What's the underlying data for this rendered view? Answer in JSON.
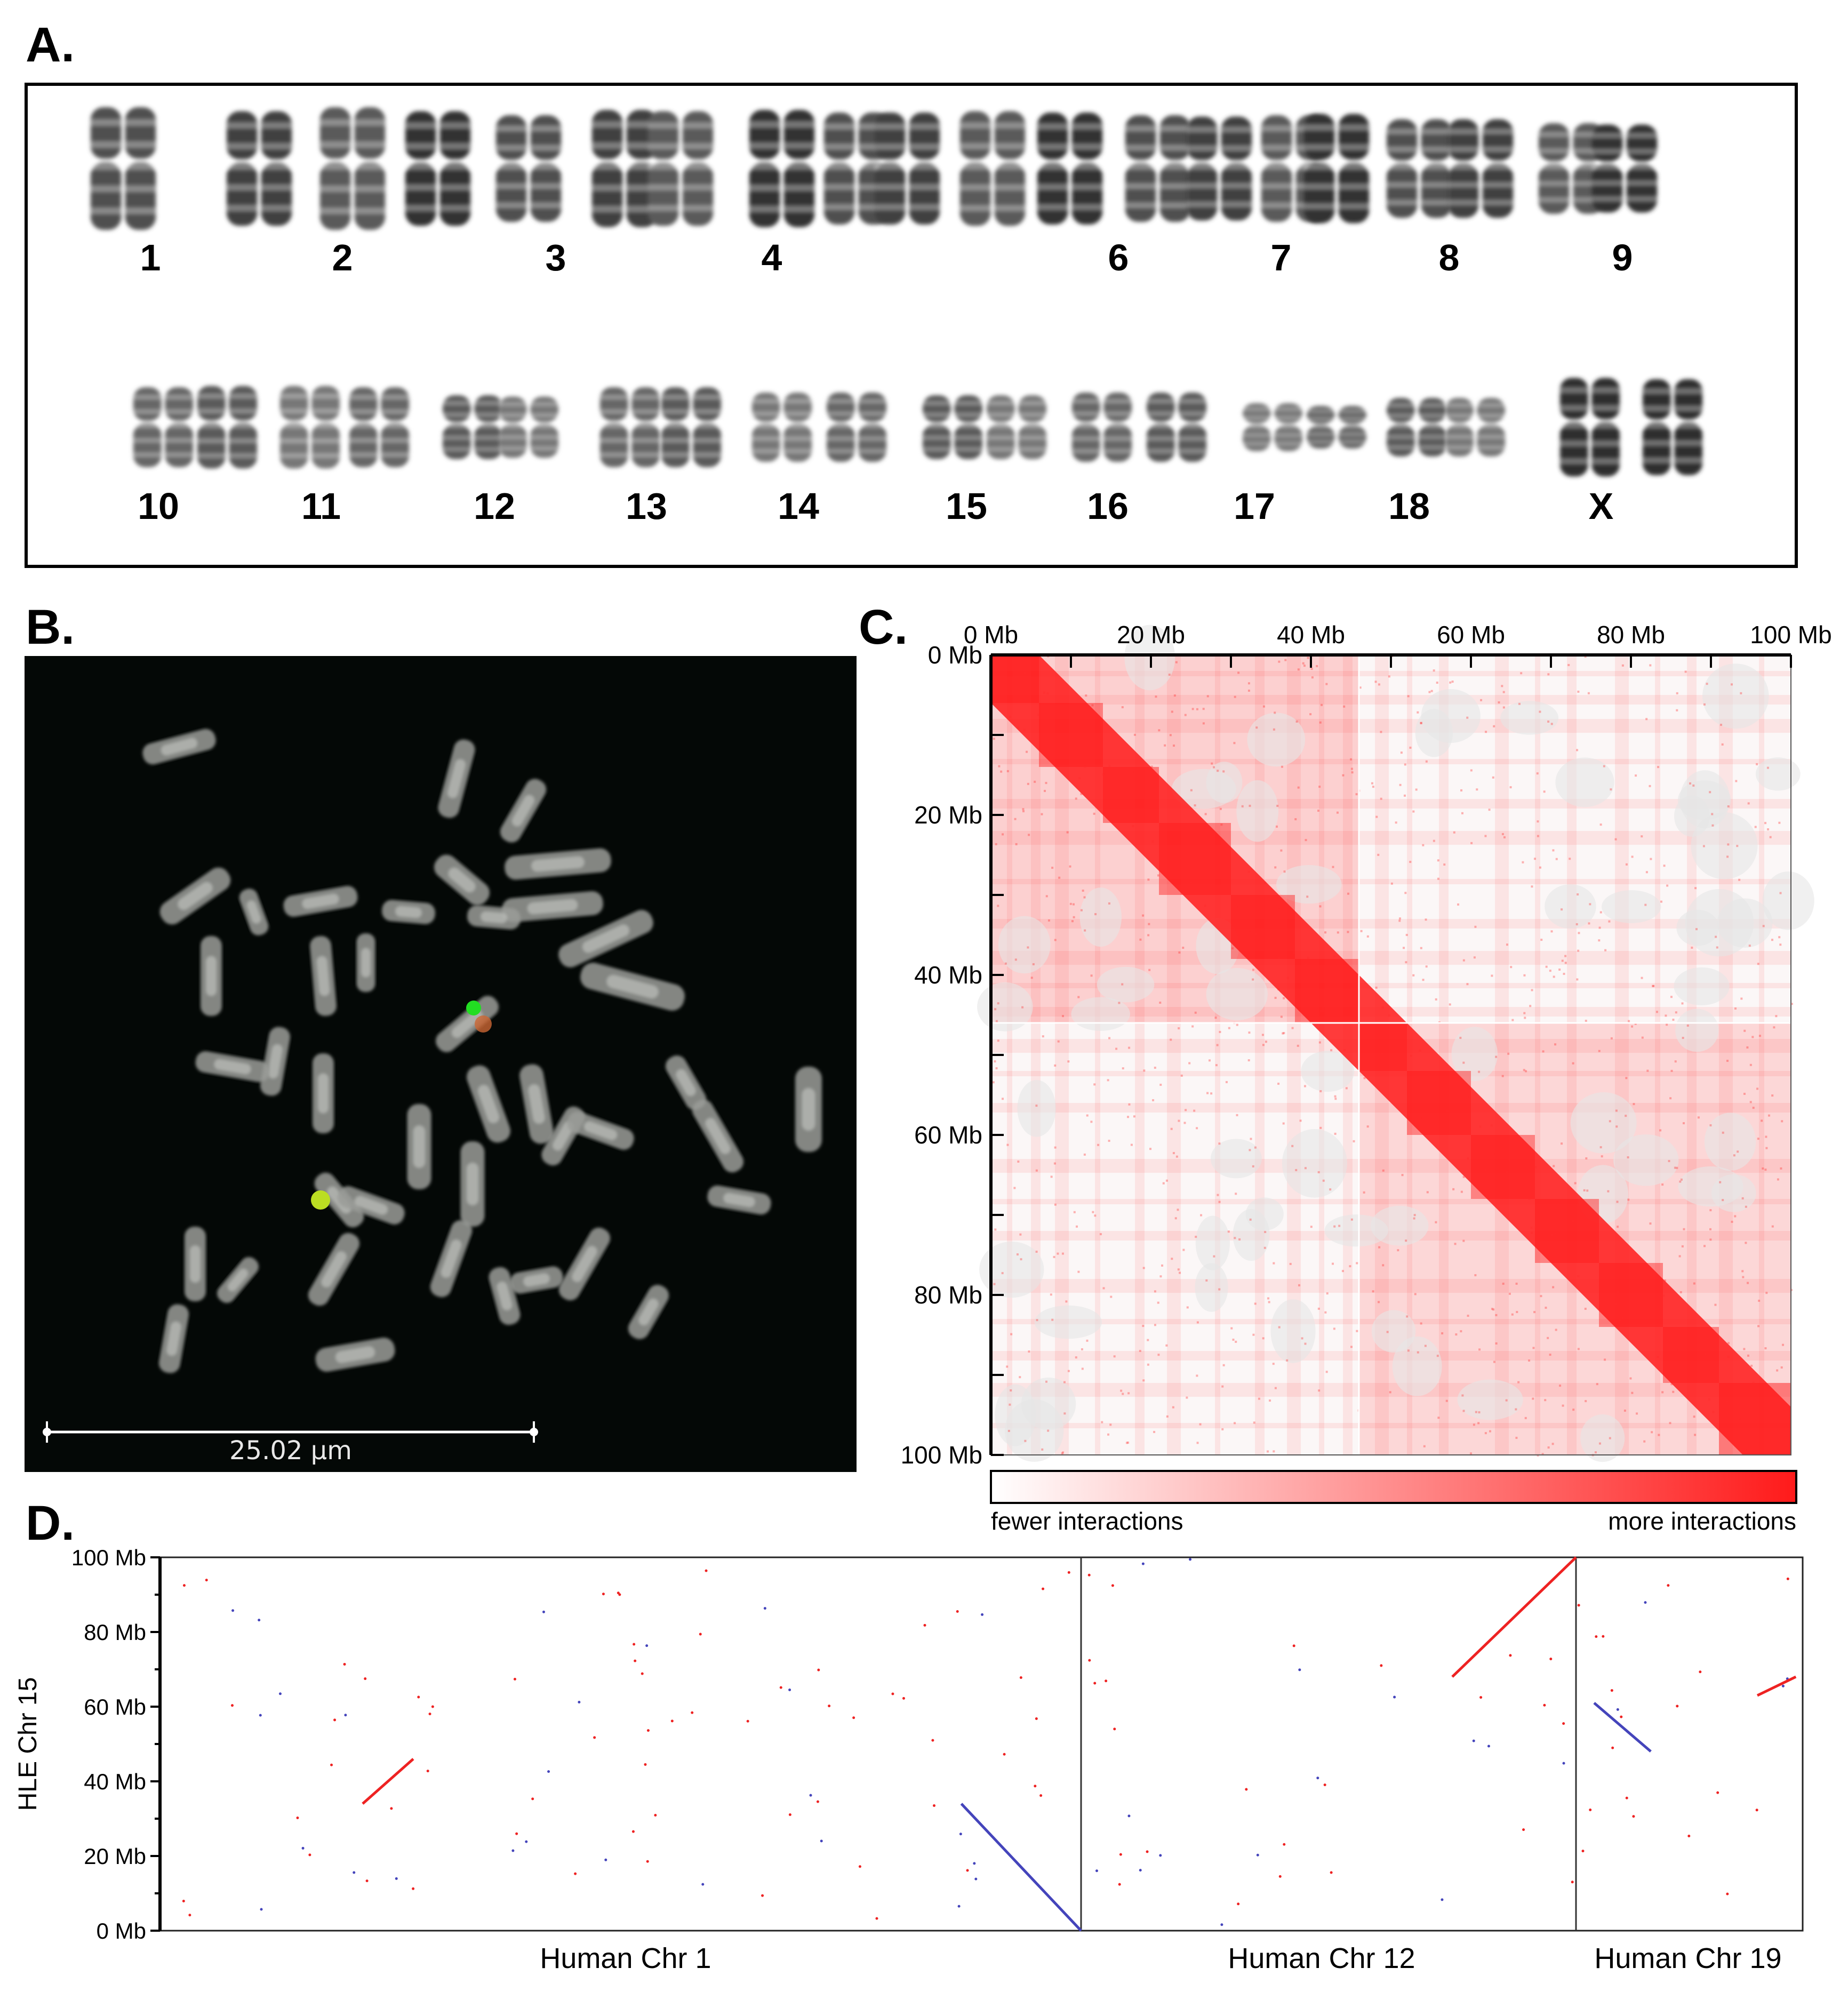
{
  "panels": {
    "a": {
      "letter": "A."
    },
    "b": {
      "letter": "B.",
      "scale_bar": "25.02 μm"
    },
    "c": {
      "letter": "C."
    },
    "d": {
      "letter": "D."
    }
  },
  "karyotype": {
    "row1_labels": [
      "1",
      "2",
      "3",
      "4",
      "6",
      "7",
      "8",
      "9"
    ],
    "row2_labels": [
      "10",
      "11",
      "12",
      "13",
      "14",
      "15",
      "16",
      "17",
      "18",
      "X"
    ]
  },
  "chart_data": [
    {
      "type": "heatmap",
      "x_ticks": [
        "0 Mb",
        "20 Mb",
        "40 Mb",
        "60 Mb",
        "80 Mb",
        "100 Mb"
      ],
      "y_ticks": [
        "0 Mb",
        "20 Mb",
        "40 Mb",
        "60 Mb",
        "80 Mb",
        "100 Mb"
      ],
      "xlim": [
        0,
        100
      ],
      "ylim": [
        0,
        100
      ],
      "block_boundary_mb": 46,
      "colorbar": {
        "low_label": "fewer interactions",
        "high_label": "more interactions",
        "low_color": "#ffffff",
        "high_color": "#ff1a1a"
      },
      "color": "#ff1a1a"
    },
    {
      "type": "scatter",
      "ylabel": "HLE Chr 15",
      "y_ticks": [
        "0 Mb",
        "20 Mb",
        "40 Mb",
        "60 Mb",
        "80 Mb",
        "100 Mb"
      ],
      "ylim": [
        0,
        100
      ],
      "x_sections": [
        "Human Chr 1",
        "Human Chr 12",
        "Human Chr 19"
      ],
      "forward_color": "#ee2222",
      "reverse_color": "#4444bb",
      "segments": [
        {
          "section": "Human Chr 1",
          "x": [
            0.22,
            0.275
          ],
          "y": [
            34,
            46
          ],
          "orientation": "forward"
        },
        {
          "section": "Human Chr 1",
          "x": [
            0.87,
            1.0
          ],
          "y": [
            34,
            0
          ],
          "orientation": "reverse"
        },
        {
          "section": "Human Chr 12",
          "x": [
            0.75,
            1.0
          ],
          "y": [
            68,
            100
          ],
          "orientation": "forward"
        },
        {
          "section": "Human Chr 19",
          "x": [
            0.08,
            0.33
          ],
          "y": [
            61,
            48
          ],
          "orientation": "reverse"
        },
        {
          "section": "Human Chr 19",
          "x": [
            0.8,
            0.97
          ],
          "y": [
            63,
            68
          ],
          "orientation": "forward"
        }
      ]
    }
  ]
}
